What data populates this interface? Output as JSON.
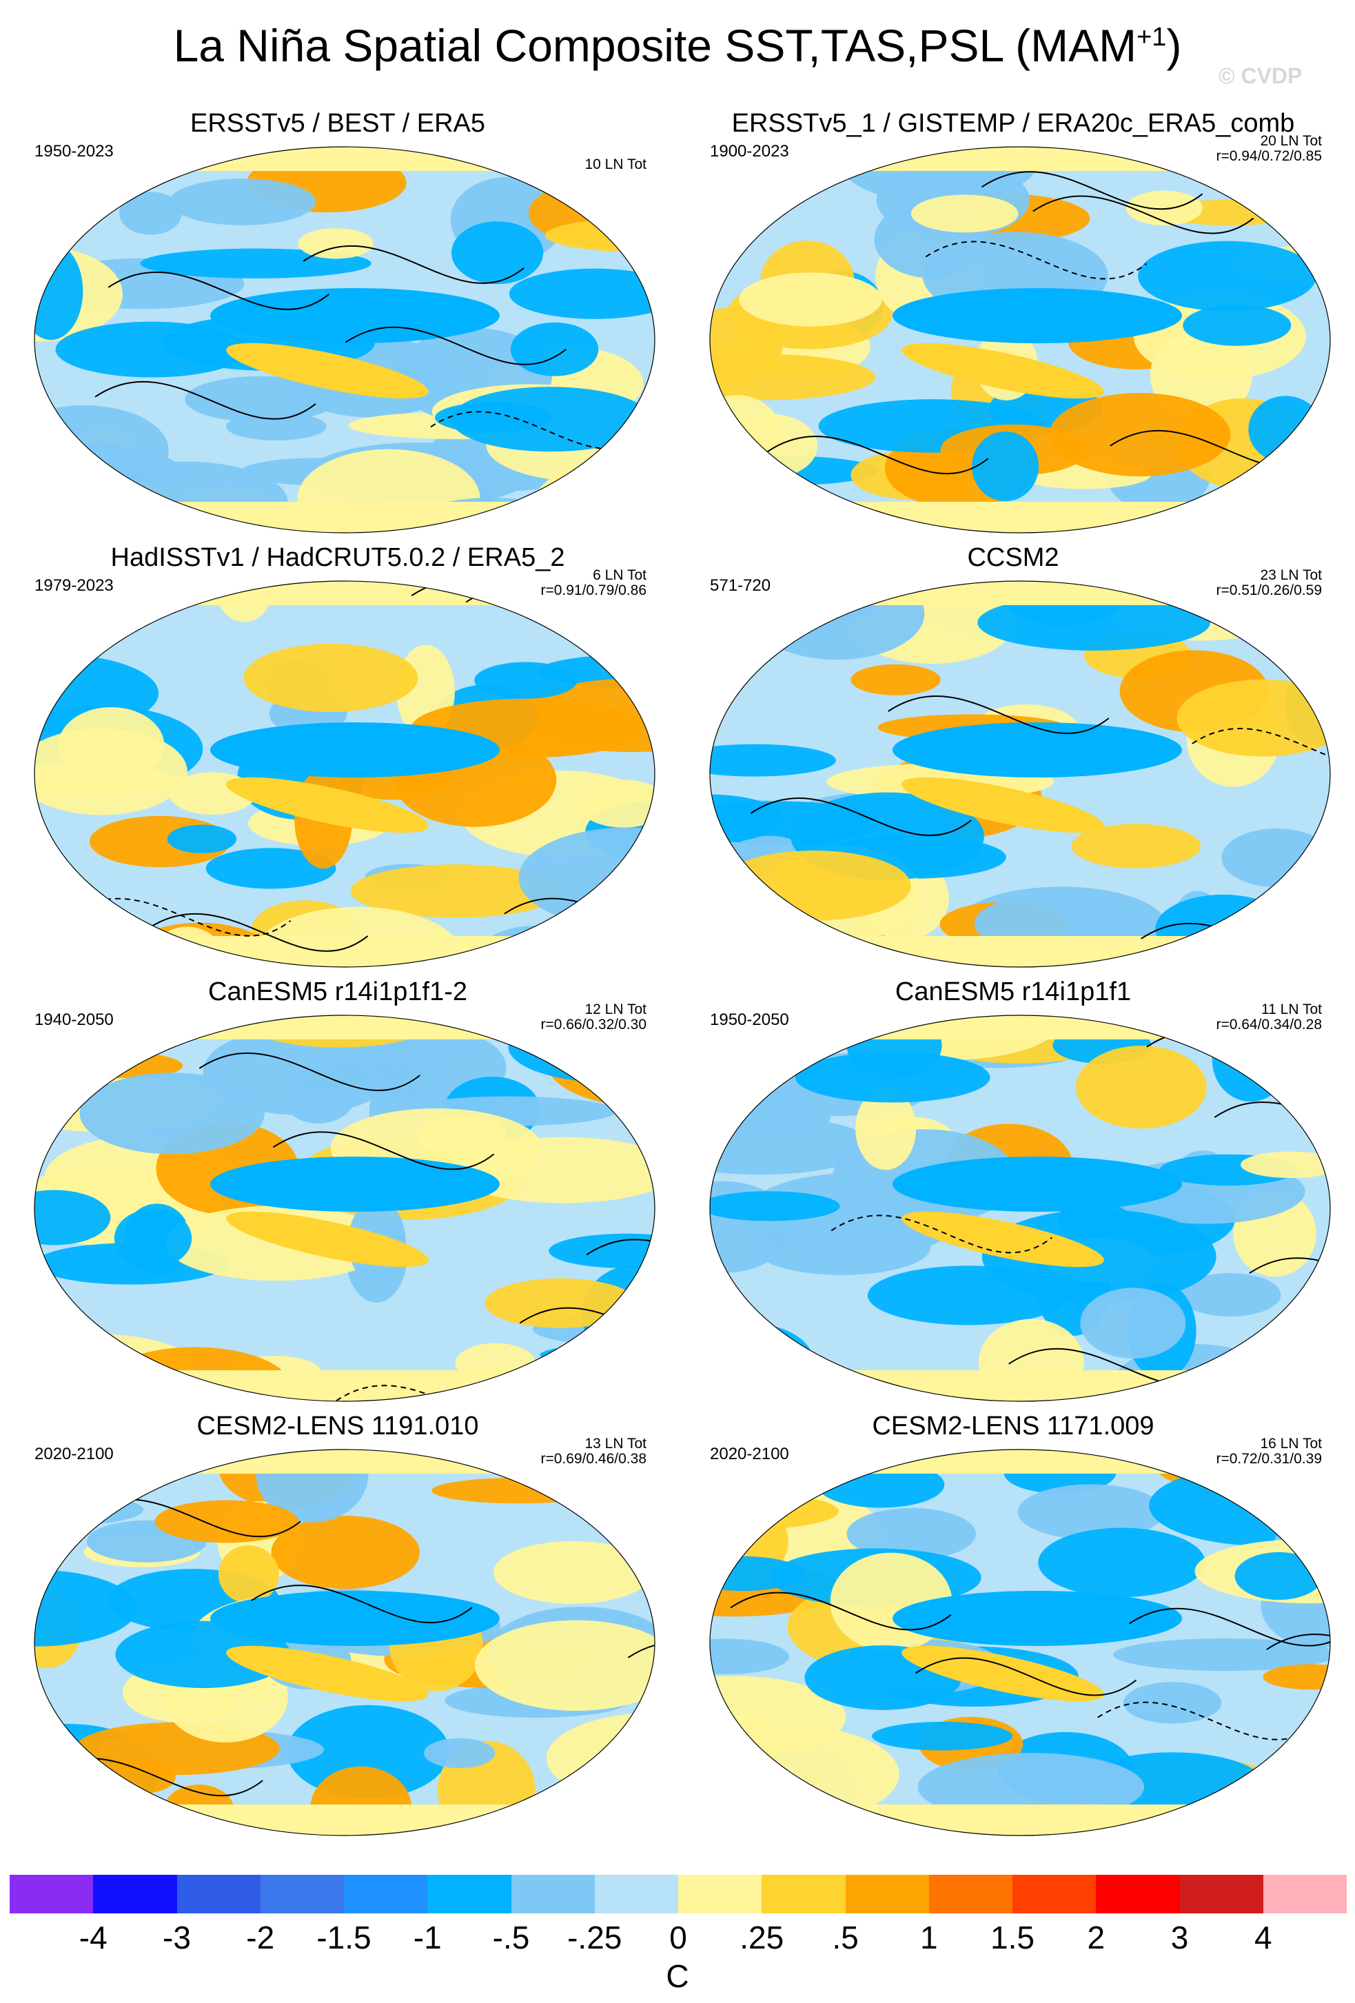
{
  "title": "La Niña Spatial Composite SST,TAS,PSL (MAM",
  "title_sup": "+1",
  "title_end": ")",
  "watermark": "© CVDP",
  "panels": [
    {
      "title": "ERSSTv5 / BEST / ERA5",
      "period": "1950-2023",
      "count": "10 LN Tot",
      "corr": ""
    },
    {
      "title": "ERSSTv5_1 / GISTEMP / ERA20c_ERA5_comb",
      "period": "1900-2023",
      "count": "20 LN Tot",
      "corr": "r=0.94/0.72/0.85"
    },
    {
      "title": "HadISSTv1 / HadCRUT5.0.2 / ERA5_2",
      "period": "1979-2023",
      "count": "6 LN Tot",
      "corr": "r=0.91/0.79/0.86"
    },
    {
      "title": "CCSM2",
      "period": "571-720",
      "count": "23 LN Tot",
      "corr": "r=0.51/0.26/0.59"
    },
    {
      "title": "CanESM5 r14i1p1f1-2",
      "period": "1940-2050",
      "count": "12 LN Tot",
      "corr": "r=0.66/0.32/0.30"
    },
    {
      "title": "CanESM5 r14i1p1f1",
      "period": "1950-2050",
      "count": "11 LN Tot",
      "corr": "r=0.64/0.34/0.28"
    },
    {
      "title": "CESM2-LENS 1191.010",
      "period": "2020-2100",
      "count": "13 LN Tot",
      "corr": "r=0.69/0.46/0.38"
    },
    {
      "title": "CESM2-LENS 1171.009",
      "period": "2020-2100",
      "count": "16 LN Tot",
      "corr": "r=0.72/0.31/0.39"
    }
  ],
  "colorbar": {
    "colors": [
      "#8b2cf5",
      "#1010ff",
      "#2e5ce6",
      "#3a78eb",
      "#1e90ff",
      "#00b2ff",
      "#7ec8f5",
      "#b8e2f8",
      "#fff59a",
      "#ffd330",
      "#ffa500",
      "#ff7300",
      "#ff4000",
      "#ff0000",
      "#d01e1e",
      "#ffb0b8"
    ],
    "labels": [
      "-4",
      "-3",
      "-2",
      "-1.5",
      "-1",
      "-.5",
      "-.25",
      "0",
      ".25",
      ".5",
      "1",
      "1.5",
      "2",
      "3",
      "4"
    ],
    "unit": "C"
  },
  "map_colors": {
    "ocean_base": "#b8e2f8",
    "cold1": "#7ec8f5",
    "cold2": "#00b2ff",
    "cold3": "#3a78eb",
    "warm1": "#fff59a",
    "warm2": "#ffd330",
    "warm3": "#ffa500",
    "warm4": "#ff7300"
  }
}
